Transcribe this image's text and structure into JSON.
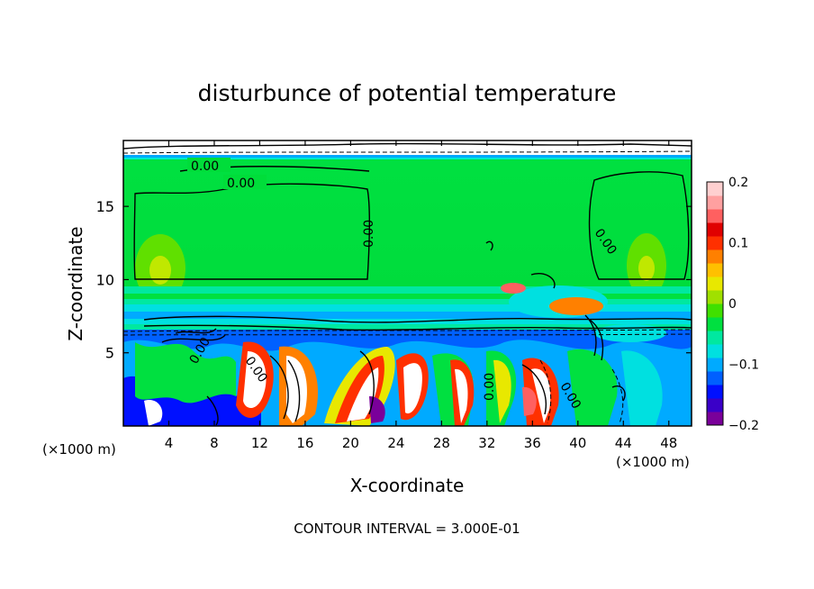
{
  "title": "disturbunce of potential temperature",
  "chart_data": {
    "type": "heatmap",
    "title": "disturbunce of potential temperature",
    "xlabel": "X-coordinate",
    "ylabel": "Z-coordinate",
    "x_unit": "(×1000 m)",
    "y_unit": "(×1000 m)",
    "xlim": [
      0,
      50
    ],
    "ylim": [
      0,
      19.5
    ],
    "x_ticks": [
      4,
      8,
      12,
      16,
      20,
      24,
      28,
      32,
      36,
      40,
      44,
      48
    ],
    "y_ticks": [
      5,
      10,
      15
    ],
    "colorbar": {
      "range": [
        -0.2,
        0.2
      ],
      "ticks": [
        0.2,
        0.1,
        0,
        -0.1,
        -0.2
      ],
      "tick_labels": [
        "0.2",
        "0.1",
        "0",
        "−0.1",
        "−0.2"
      ],
      "colors": [
        "#7a009a",
        "#3a00c8",
        "#0010ff",
        "#0060ff",
        "#00aaff",
        "#00e0e0",
        "#00e8a0",
        "#00e040",
        "#40e000",
        "#a0e000",
        "#e8e800",
        "#ffc000",
        "#ff8000",
        "#ff3000",
        "#e00000",
        "#ff6060",
        "#ffa0a0",
        "#ffd0d0"
      ]
    },
    "contour_labels": [
      "0.00",
      "0.00",
      "0.00",
      "0.00",
      "0.00",
      "0.00",
      "0.00",
      "0.00"
    ],
    "footer": "CONTOUR INTERVAL = 3.000E-01",
    "grid": false
  }
}
